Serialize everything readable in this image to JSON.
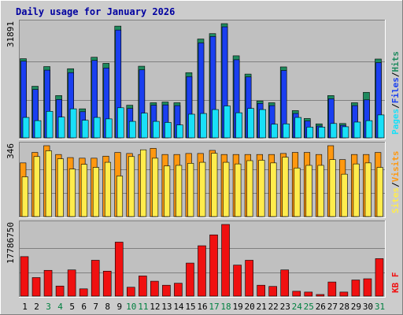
{
  "chart_data": {
    "type": "bar",
    "title": "Daily usage for January 2026",
    "days": [
      "1",
      "2",
      "3",
      "4",
      "5",
      "6",
      "7",
      "8",
      "9",
      "10",
      "11",
      "12",
      "13",
      "14",
      "15",
      "16",
      "17",
      "18",
      "19",
      "20",
      "21",
      "22",
      "23",
      "24",
      "25",
      "26",
      "27",
      "28",
      "29",
      "30",
      "31"
    ],
    "weekend_days": [
      "3",
      "4",
      "10",
      "11",
      "17",
      "18",
      "24",
      "25",
      "31"
    ],
    "panels": [
      {
        "id": "hits",
        "max_label": "31891",
        "ymax": 31891,
        "legend": [
          "Pages",
          "/",
          "Files",
          "/",
          "Hits"
        ],
        "series": [
          {
            "name": "Hits",
            "color": "#1e8a5e",
            "values": [
              22100,
              14400,
              19900,
              11800,
              19300,
              8100,
              22500,
              20800,
              31200,
              9100,
              20000,
              9800,
              10000,
              9800,
              18200,
              27600,
              29100,
              31891,
              22900,
              17800,
              10300,
              9800,
              19800,
              7600,
              5400,
              3900,
              11800,
              4000,
              9800,
              12700,
              22000
            ]
          },
          {
            "name": "Files",
            "color": "#1a3ff0",
            "values": [
              21400,
              13500,
              18900,
              10700,
              18200,
              7300,
              21600,
              19500,
              30100,
              8200,
              19000,
              9100,
              9200,
              9000,
              17100,
              26500,
              28300,
              31000,
              21800,
              17000,
              9600,
              9000,
              18800,
              6800,
              4700,
              3300,
              10900,
              3500,
              9000,
              10600,
              21000
            ]
          },
          {
            "name": "Pages",
            "color": "#18e0f8",
            "values": [
              5700,
              4800,
              7400,
              5800,
              8100,
              4900,
              5700,
              5300,
              8400,
              4600,
              6900,
              4600,
              4300,
              3600,
              6600,
              6800,
              7900,
              8900,
              7000,
              8200,
              7900,
              3800,
              3900,
              5700,
              3000,
              3000,
              4000,
              3100,
              4400,
              4800,
              6400
            ]
          }
        ]
      },
      {
        "id": "visits",
        "max_label": "346",
        "ymax": 346,
        "legend": [
          "Sites",
          "/",
          "Visits"
        ],
        "series": [
          {
            "name": "Visits",
            "color": "#ff9810",
            "values": [
              262,
              313,
              346,
              303,
              288,
              285,
              285,
              295,
              313,
              308,
              303,
              333,
              303,
              303,
              308,
              308,
              323,
              303,
              303,
              303,
              303,
              303,
              308,
              313,
              313,
              303,
              346,
              278,
              303,
              303,
              313
            ]
          },
          {
            "name": "Sites",
            "color": "#ffec4d",
            "values": [
              194,
              293,
              321,
              282,
              232,
              255,
              240,
              265,
              198,
              293,
              326,
              285,
              247,
              250,
              260,
              265,
              309,
              265,
              257,
              273,
              275,
              262,
              290,
              237,
              250,
              250,
              278,
              207,
              257,
              262,
              240
            ]
          }
        ]
      },
      {
        "id": "kbytes",
        "max_label": "17786750",
        "ymax": 17786750,
        "legend": [
          "KB",
          "F"
        ],
        "series": [
          {
            "name": "KBytes",
            "color": "#f01010",
            "values": [
              9800000,
              4600000,
              6400000,
              2500000,
              6500000,
              1800000,
              8900000,
              6200000,
              13400000,
              2200000,
              5000000,
              3700000,
              2700000,
              3200000,
              8200000,
              12500000,
              15200000,
              17786750,
              7700000,
              8900000,
              2700000,
              2400000,
              6500000,
              1200000,
              1000000,
              400000,
              3500000,
              1000000,
              4000000,
              4300000,
              9300000
            ]
          }
        ]
      }
    ]
  },
  "colors": {
    "frame_background": "#cccccc",
    "plot_background": "#c0c0c0",
    "grid": "#808080",
    "title_text": "#0000a0",
    "weekday_label": "#000000",
    "weekend_label": "#008040",
    "label_max": "#000000",
    "legend_slash": "#000000"
  }
}
